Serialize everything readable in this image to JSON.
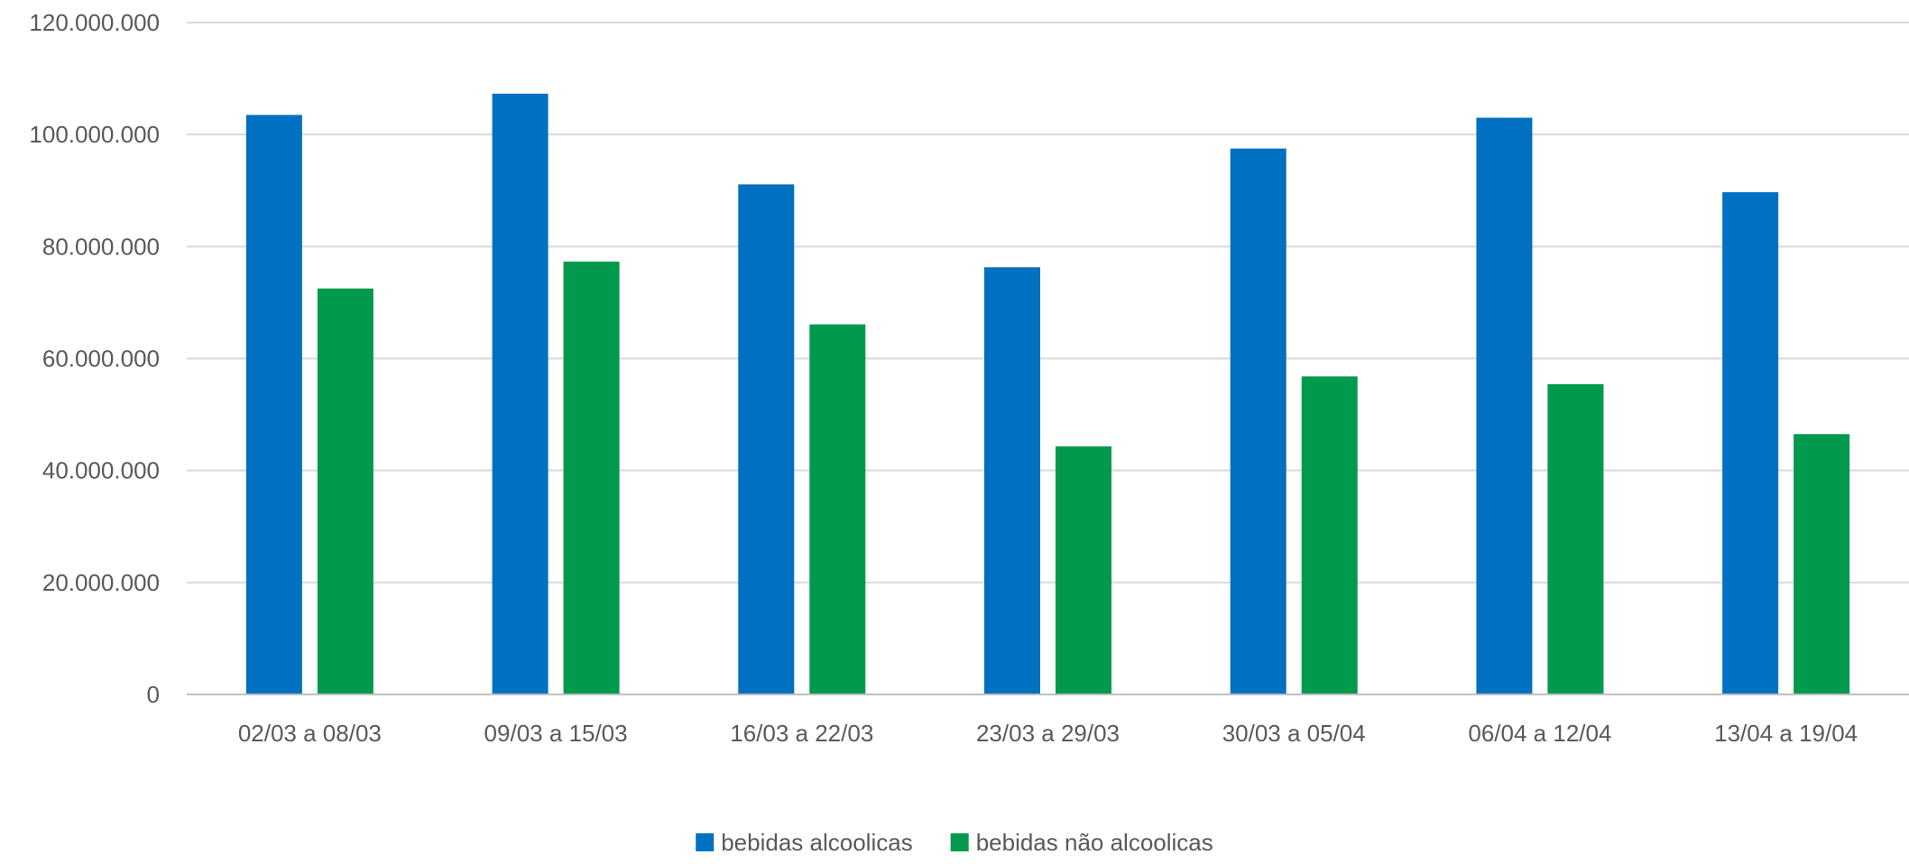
{
  "chart_data": {
    "type": "bar",
    "categories": [
      "02/03 a 08/03",
      "09/03 a 15/03",
      "16/03 a 22/03",
      "23/03 a 29/03",
      "30/03 a 05/04",
      "06/04 a 12/04",
      "13/04 a 19/04"
    ],
    "series": [
      {
        "name": "bebidas alcoolicas",
        "color": "#0070c0",
        "values": [
          103500000,
          107300000,
          91100000,
          76300000,
          97500000,
          103000000,
          89700000
        ]
      },
      {
        "name": "bebidas não alcoolicas",
        "color": "#00994d",
        "values": [
          72500000,
          77300000,
          66100000,
          44300000,
          56800000,
          55400000,
          46500000
        ]
      }
    ],
    "y_ticks": [
      "0",
      "20.000.000",
      "40.000.000",
      "60.000.000",
      "80.000.000",
      "100.000.000",
      "120.000.000"
    ],
    "ylim": [
      0,
      120000000
    ],
    "grid": true,
    "legend_position": "bottom"
  }
}
